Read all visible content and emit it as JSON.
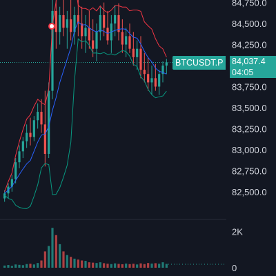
{
  "chart_data": {
    "type": "candlestick",
    "symbol": "BTCUSDT.P",
    "last_price": "84,037.4",
    "countdown": "04:05",
    "price_axis_ticks": [
      "84,750.0",
      "84,500.0",
      "84,250.0",
      "84,000.0",
      "83,750.0",
      "83,500.0",
      "83,250.0",
      "83,000.0",
      "82,750.0",
      "82,500.0"
    ],
    "price_axis_values": [
      84750,
      84500,
      84250,
      84000,
      83750,
      83500,
      83250,
      83000,
      82750,
      82500
    ],
    "volume_axis_ticks": [
      "2K",
      "0"
    ],
    "volume_axis_values": [
      2000,
      0
    ],
    "candles": [
      {
        "o": 82420,
        "h": 82520,
        "l": 82380,
        "c": 82480
      },
      {
        "o": 82480,
        "h": 82600,
        "l": 82420,
        "c": 82560
      },
      {
        "o": 82560,
        "h": 82700,
        "l": 82500,
        "c": 82650
      },
      {
        "o": 82650,
        "h": 82900,
        "l": 82600,
        "c": 82850
      },
      {
        "o": 82850,
        "h": 83050,
        "l": 82780,
        "c": 82980
      },
      {
        "o": 82980,
        "h": 83150,
        "l": 82900,
        "c": 83100
      },
      {
        "o": 83100,
        "h": 83300,
        "l": 83020,
        "c": 83200
      },
      {
        "o": 83200,
        "h": 83380,
        "l": 83050,
        "c": 83150
      },
      {
        "o": 83150,
        "h": 83400,
        "l": 83100,
        "c": 83350
      },
      {
        "o": 83350,
        "h": 83550,
        "l": 83250,
        "c": 83450
      },
      {
        "o": 83450,
        "h": 83600,
        "l": 83200,
        "c": 83300
      },
      {
        "o": 83300,
        "h": 83700,
        "l": 82800,
        "c": 82950
      },
      {
        "o": 82950,
        "h": 83800,
        "l": 82900,
        "c": 83700
      },
      {
        "o": 83700,
        "h": 84800,
        "l": 83600,
        "c": 84650
      },
      {
        "o": 84650,
        "h": 84800,
        "l": 84200,
        "c": 84400
      },
      {
        "o": 84400,
        "h": 84700,
        "l": 84250,
        "c": 84600
      },
      {
        "o": 84600,
        "h": 84780,
        "l": 84350,
        "c": 84450
      },
      {
        "o": 84450,
        "h": 84650,
        "l": 84200,
        "c": 84550
      },
      {
        "o": 84550,
        "h": 84780,
        "l": 84300,
        "c": 84400
      },
      {
        "o": 84400,
        "h": 84700,
        "l": 84250,
        "c": 84600
      },
      {
        "o": 84600,
        "h": 84780,
        "l": 84350,
        "c": 84500
      },
      {
        "o": 84500,
        "h": 84700,
        "l": 84200,
        "c": 84350
      },
      {
        "o": 84350,
        "h": 84600,
        "l": 84150,
        "c": 84450
      },
      {
        "o": 84450,
        "h": 84650,
        "l": 84200,
        "c": 84300
      },
      {
        "o": 84300,
        "h": 84550,
        "l": 84100,
        "c": 84200
      },
      {
        "o": 84200,
        "h": 84500,
        "l": 84050,
        "c": 84400
      },
      {
        "o": 84400,
        "h": 84700,
        "l": 84300,
        "c": 84600
      },
      {
        "o": 84600,
        "h": 84750,
        "l": 84350,
        "c": 84450
      },
      {
        "o": 84450,
        "h": 84650,
        "l": 84250,
        "c": 84300
      },
      {
        "o": 84300,
        "h": 84600,
        "l": 84150,
        "c": 84500
      },
      {
        "o": 84500,
        "h": 84720,
        "l": 84350,
        "c": 84600
      },
      {
        "o": 84600,
        "h": 84740,
        "l": 84300,
        "c": 84400
      },
      {
        "o": 84400,
        "h": 84550,
        "l": 84150,
        "c": 84250
      },
      {
        "o": 84250,
        "h": 84450,
        "l": 84100,
        "c": 84350
      },
      {
        "o": 84350,
        "h": 84500,
        "l": 84150,
        "c": 84200
      },
      {
        "o": 84200,
        "h": 84400,
        "l": 84000,
        "c": 84100
      },
      {
        "o": 84100,
        "h": 84300,
        "l": 83950,
        "c": 84200
      },
      {
        "o": 84200,
        "h": 84350,
        "l": 83850,
        "c": 83950
      },
      {
        "o": 83950,
        "h": 84150,
        "l": 83800,
        "c": 83900
      },
      {
        "o": 83900,
        "h": 84100,
        "l": 83700,
        "c": 83800
      },
      {
        "o": 83800,
        "h": 84000,
        "l": 83650,
        "c": 83850
      },
      {
        "o": 83850,
        "h": 84020,
        "l": 83700,
        "c": 83750
      },
      {
        "o": 83750,
        "h": 83950,
        "l": 83650,
        "c": 83900
      },
      {
        "o": 83900,
        "h": 84050,
        "l": 83800,
        "c": 84000
      },
      {
        "o": 84000,
        "h": 84080,
        "l": 83900,
        "c": 84037
      }
    ],
    "volumes": [
      120,
      150,
      100,
      180,
      160,
      140,
      200,
      220,
      180,
      260,
      400,
      900,
      1200,
      2200,
      1800,
      1300,
      900,
      700,
      600,
      500,
      450,
      400,
      380,
      300,
      280,
      260,
      300,
      250,
      220,
      200,
      240,
      210,
      190,
      230,
      200,
      220,
      180,
      240,
      200,
      260,
      230,
      250,
      220,
      300,
      210
    ],
    "indicators": [
      "bollinger-upper",
      "bollinger-basis",
      "bollinger-lower"
    ]
  },
  "colors": {
    "background": "#131722",
    "up": "#26a69a",
    "down": "#ef5350",
    "bb_upper": "#f23645",
    "bb_basis": "#2962ff",
    "bb_lower": "#089981",
    "price_tag": "#26a69a",
    "grid": "#1e222d"
  },
  "icons": {
    "alert": "alert-icon"
  }
}
